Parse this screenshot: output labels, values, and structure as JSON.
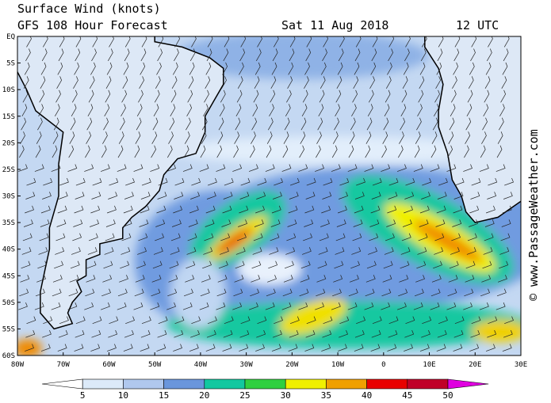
{
  "header": {
    "title": "Surface Wind (knots)",
    "model": "GFS 108 Hour Forecast",
    "date": "Sat 11 Aug 2018",
    "time": "12 UTC"
  },
  "latitude_labels": [
    "EQ",
    "5S",
    "10S",
    "15S",
    "20S",
    "25S",
    "30S",
    "35S",
    "40S",
    "45S",
    "50S",
    "55S",
    "60S"
  ],
  "longitude_labels": [
    "80W",
    "70W",
    "60W",
    "50W",
    "40W",
    "30W",
    "20W",
    "10W",
    "0",
    "10E",
    "20E",
    "30E"
  ],
  "colorbar": {
    "labels": [
      "5",
      "10",
      "15",
      "20",
      "25",
      "30",
      "35",
      "40",
      "45",
      "50"
    ]
  },
  "credit": "© www.PassageWeather.com"
}
